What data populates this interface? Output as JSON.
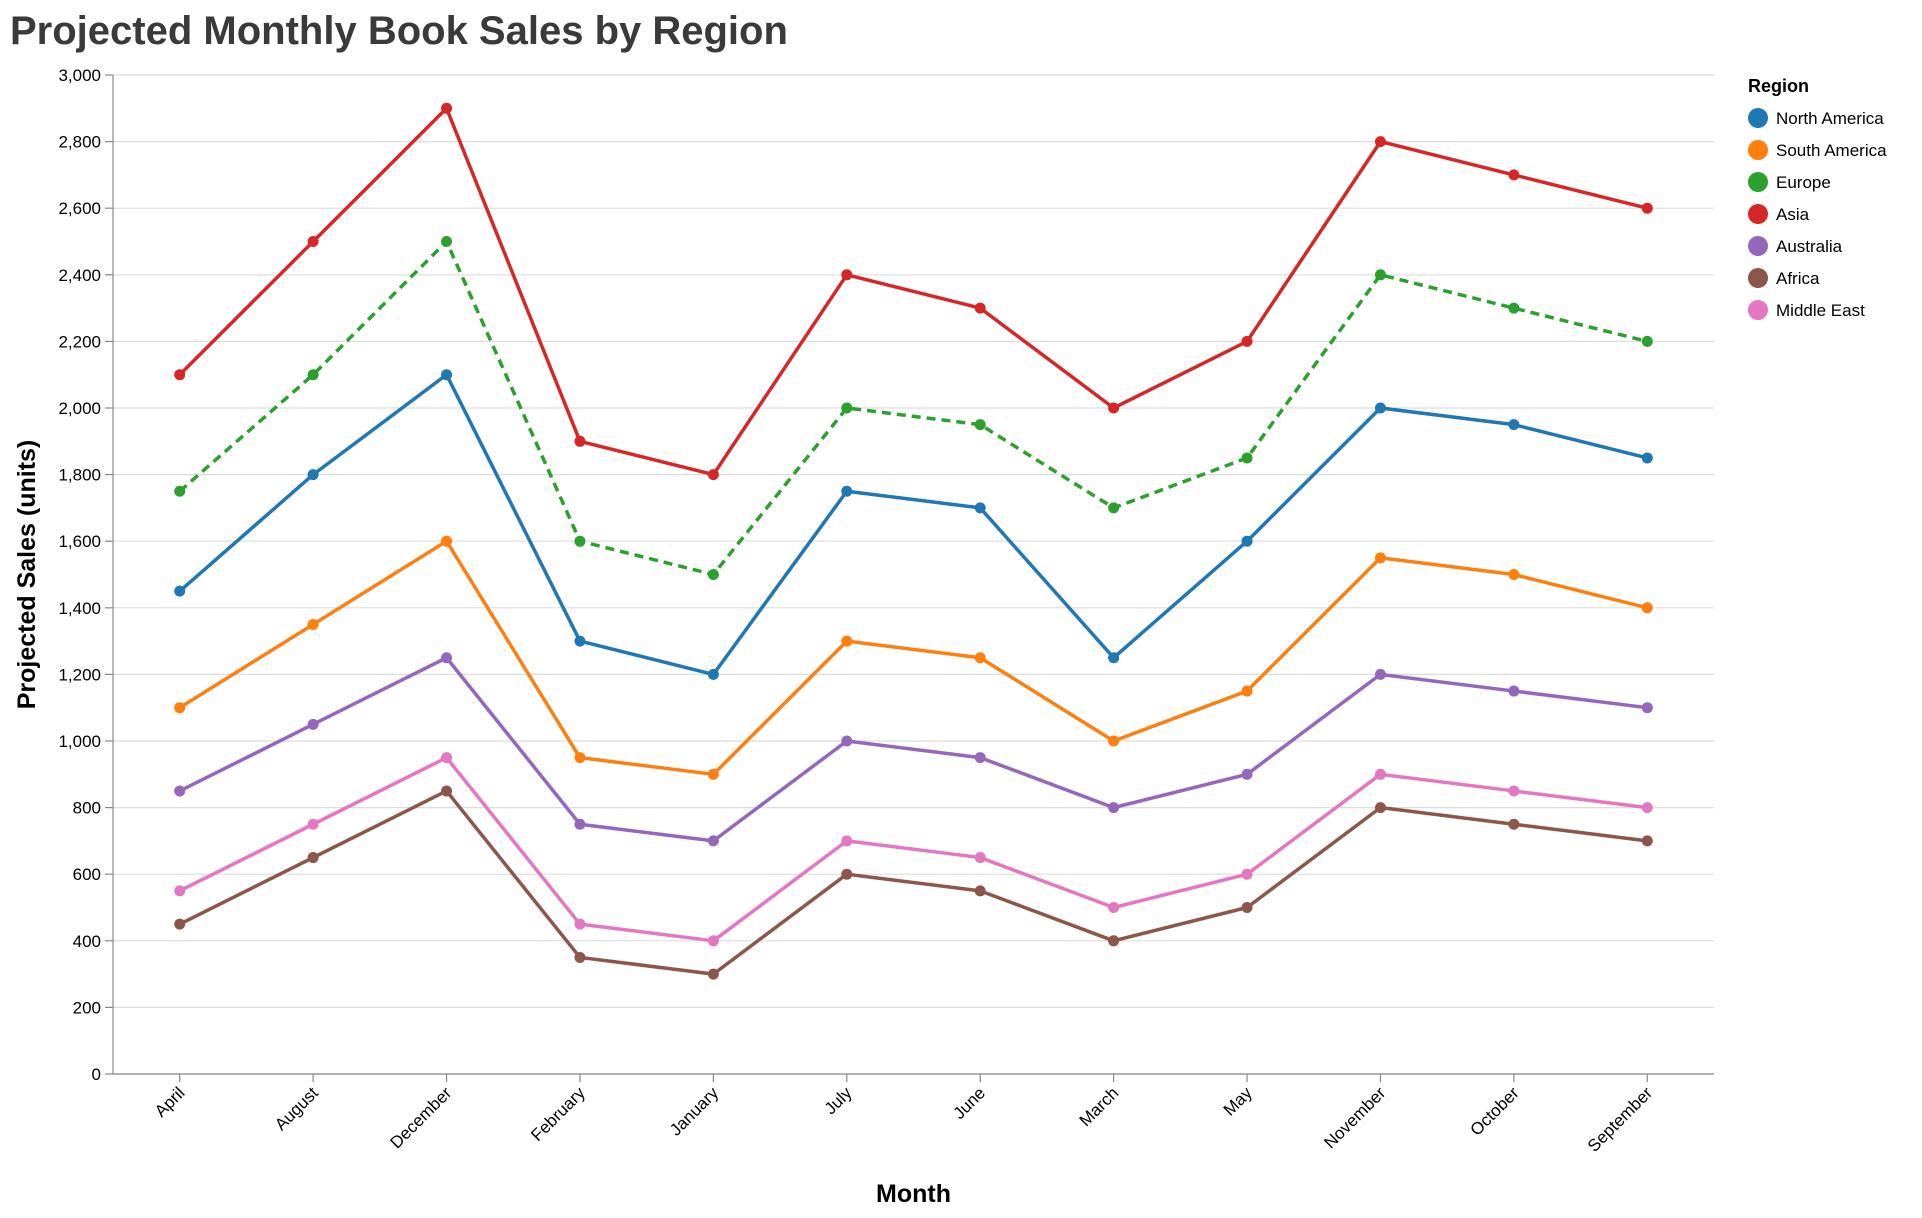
{
  "chart_data": {
    "type": "line",
    "title": "Projected Monthly Book Sales by Region",
    "xlabel": "Month",
    "ylabel": "Projected Sales (units)",
    "ylim": [
      0,
      3000
    ],
    "yticks": [
      0,
      200,
      400,
      600,
      800,
      1000,
      1200,
      1400,
      1600,
      1800,
      2000,
      2200,
      2400,
      2600,
      2800,
      3000
    ],
    "ytick_labels": [
      "0",
      "200",
      "400",
      "600",
      "800",
      "1,000",
      "1,200",
      "1,400",
      "1,600",
      "1,800",
      "2,000",
      "2,200",
      "2,400",
      "2,600",
      "2,800",
      "3,000"
    ],
    "grid": true,
    "legend_title": "Region",
    "legend_position": "top-right",
    "categories": [
      "April",
      "August",
      "December",
      "February",
      "January",
      "July",
      "June",
      "March",
      "May",
      "November",
      "October",
      "September"
    ],
    "series": [
      {
        "name": "North America",
        "color": "#1f77b4",
        "dashed": false,
        "values": [
          1450,
          1800,
          2100,
          1300,
          1200,
          1750,
          1700,
          1250,
          1600,
          2000,
          1950,
          1850
        ]
      },
      {
        "name": "South America",
        "color": "#ff7f0e",
        "dashed": false,
        "values": [
          1100,
          1350,
          1600,
          950,
          900,
          1300,
          1250,
          1000,
          1150,
          1550,
          1500,
          1400
        ]
      },
      {
        "name": "Europe",
        "color": "#2ca02c",
        "dashed": true,
        "values": [
          1750,
          2100,
          2500,
          1600,
          1500,
          2000,
          1950,
          1700,
          1850,
          2400,
          2300,
          2200
        ]
      },
      {
        "name": "Asia",
        "color": "#d62728",
        "dashed": false,
        "values": [
          2100,
          2500,
          2900,
          1900,
          1800,
          2400,
          2300,
          2000,
          2200,
          2800,
          2700,
          2600
        ]
      },
      {
        "name": "Australia",
        "color": "#9467bd",
        "dashed": false,
        "values": [
          850,
          1050,
          1250,
          750,
          700,
          1000,
          950,
          800,
          900,
          1200,
          1150,
          1100
        ]
      },
      {
        "name": "Africa",
        "color": "#8c564b",
        "dashed": false,
        "values": [
          450,
          650,
          850,
          350,
          300,
          600,
          550,
          400,
          500,
          800,
          750,
          700
        ]
      },
      {
        "name": "Middle East",
        "color": "#e377c2",
        "dashed": false,
        "values": [
          550,
          750,
          950,
          450,
          400,
          700,
          650,
          500,
          600,
          900,
          850,
          800
        ]
      }
    ]
  }
}
